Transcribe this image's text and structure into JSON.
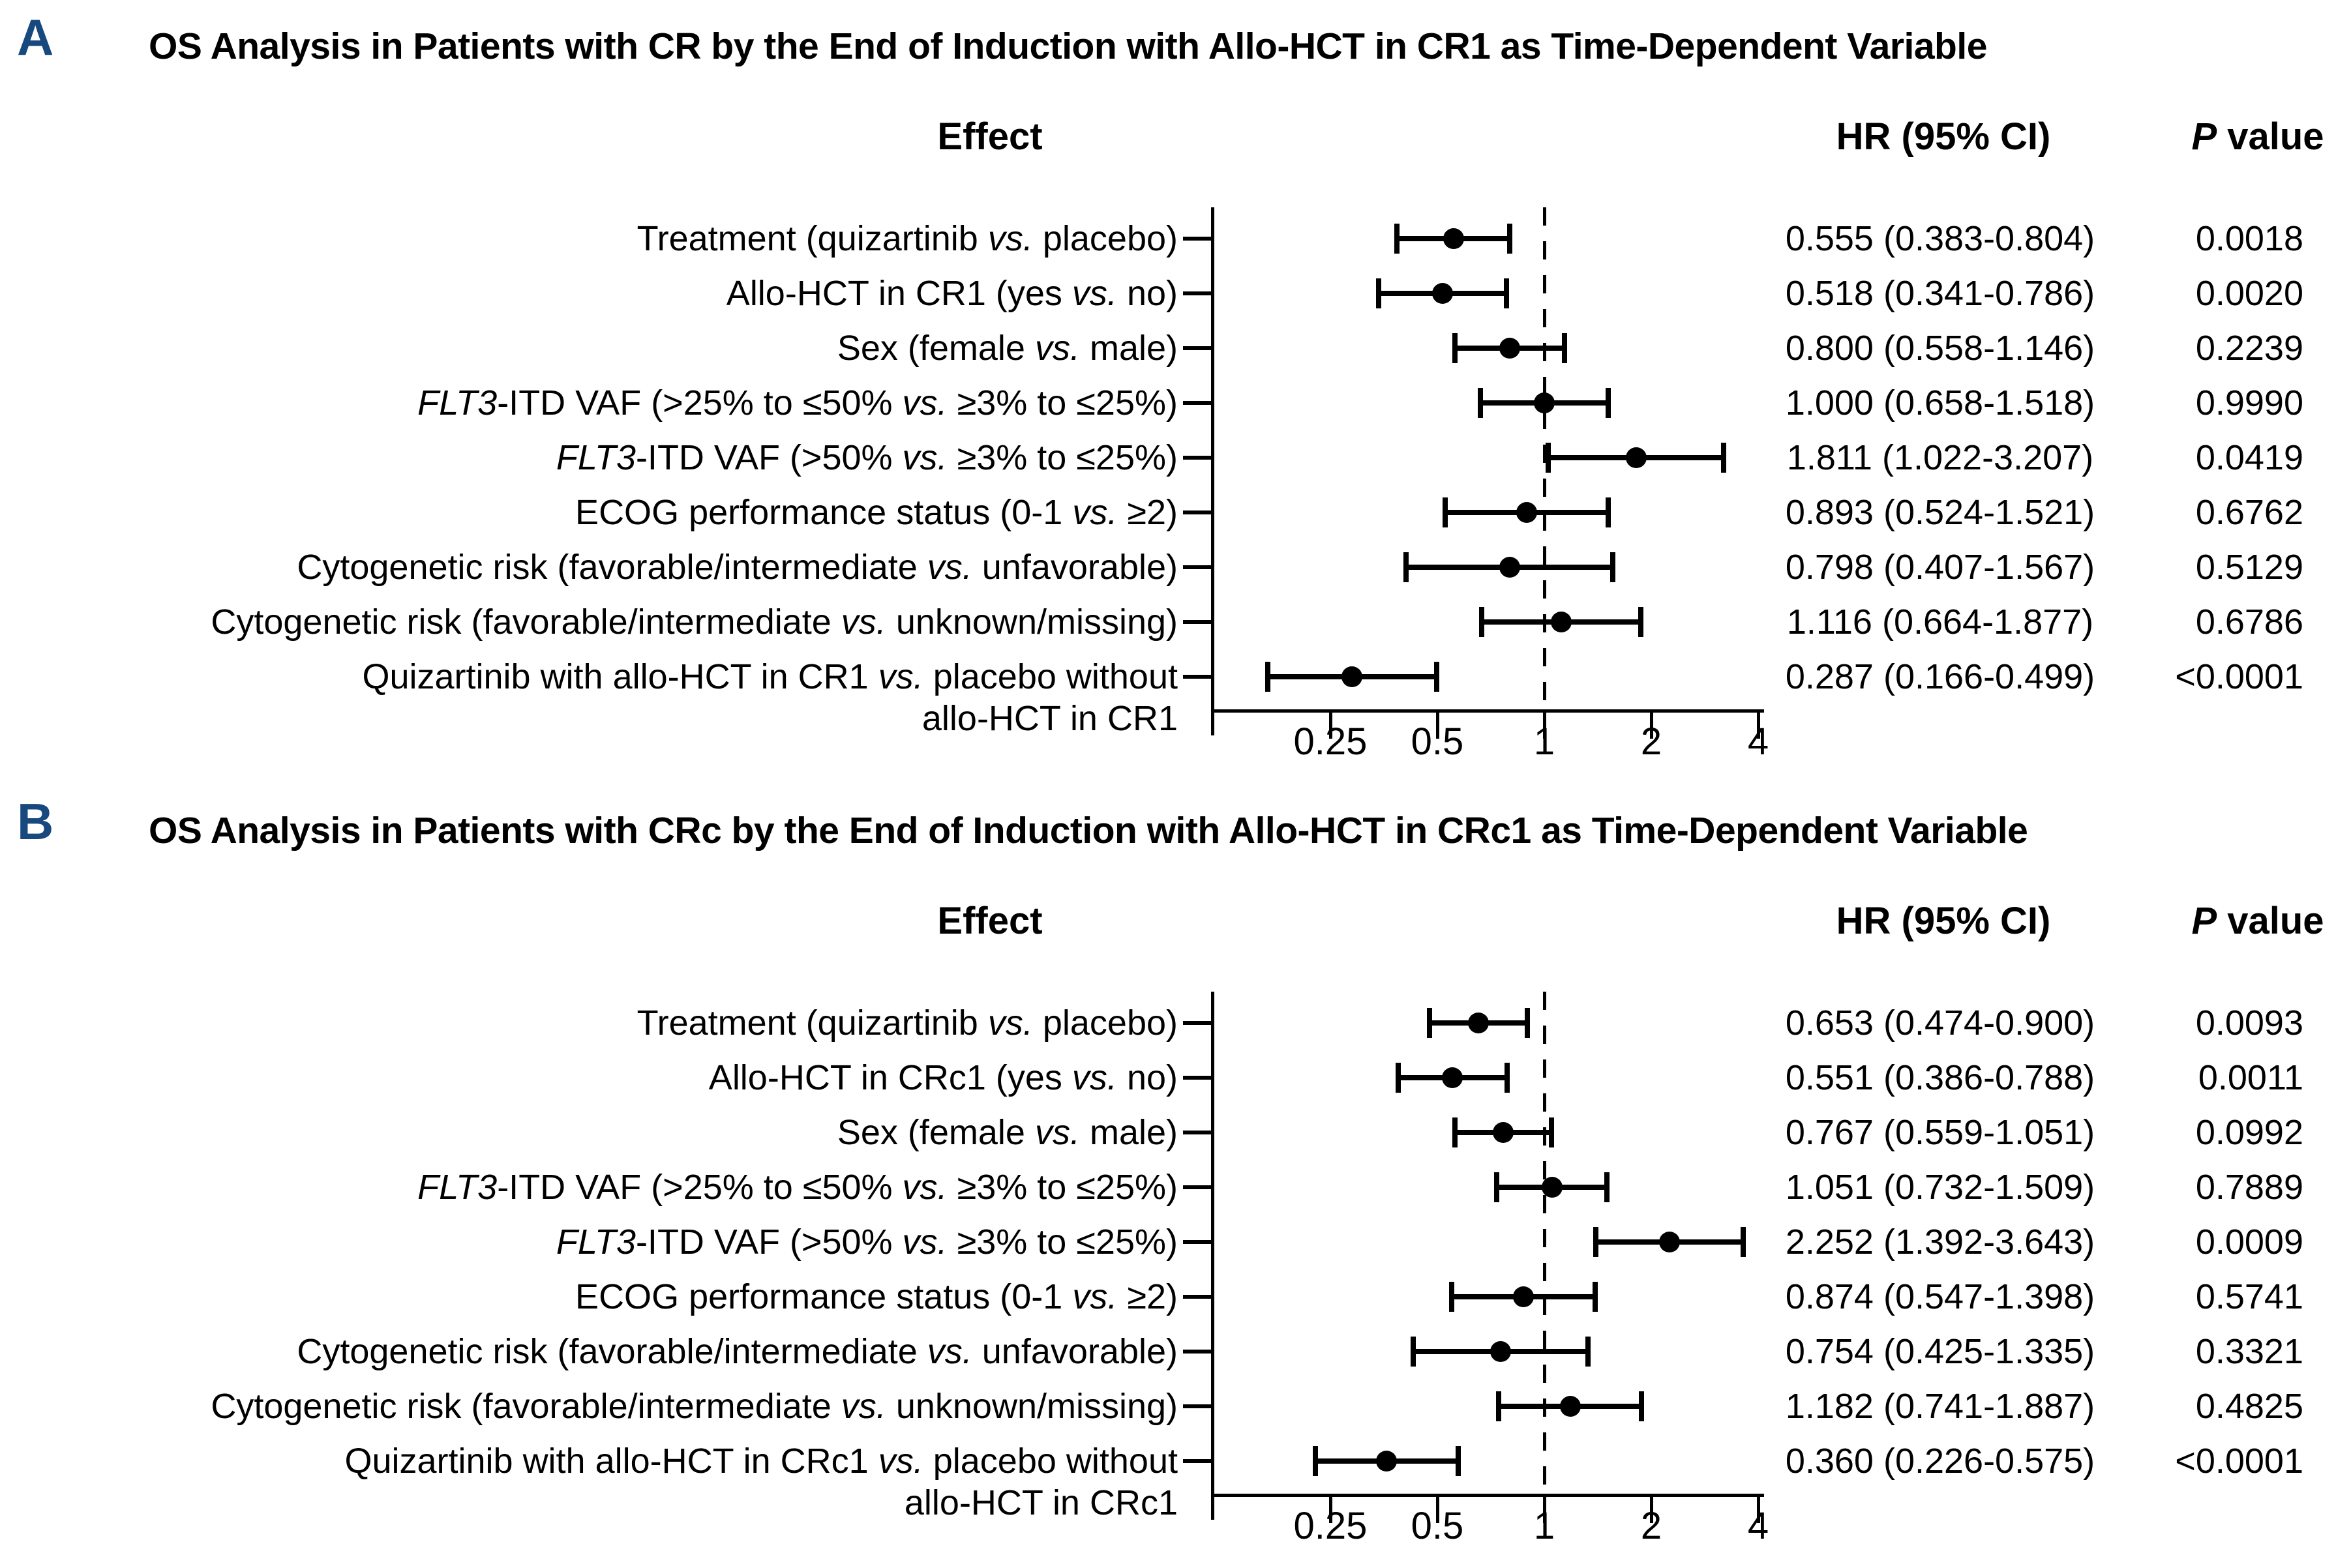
{
  "chart_data": [
    {
      "type": "scatter",
      "subtype": "forest-plot",
      "panel_label": "A",
      "title": "OS Analysis in Patients with CR by the End of Induction with Allo-HCT in CR1 as Time-Dependent Variable",
      "headers": {
        "effect": "Effect",
        "hr": "HR (95% CI)",
        "p": "P value"
      },
      "x_axis": {
        "scale": "log2",
        "ticks": [
          "0.25",
          "0.5",
          "1",
          "2",
          "4"
        ],
        "tick_values": [
          0.25,
          0.5,
          1,
          2,
          4
        ],
        "reference_line": 1
      },
      "rows": [
        {
          "label": "Treatment (quizartinib vs. placebo)",
          "hr": 0.555,
          "lo": 0.383,
          "hi": 0.804,
          "hr_ci": "0.555 (0.383-0.804)",
          "p": "0.0018"
        },
        {
          "label": "Allo-HCT in CR1 (yes vs. no)",
          "hr": 0.518,
          "lo": 0.341,
          "hi": 0.786,
          "hr_ci": "0.518 (0.341-0.786)",
          "p": "0.0020"
        },
        {
          "label": "Sex (female vs. male)",
          "hr": 0.8,
          "lo": 0.558,
          "hi": 1.146,
          "hr_ci": "0.800 (0.558-1.146)",
          "p": "0.2239"
        },
        {
          "label": "FLT3-ITD VAF (>25% to ≤50% vs. ≥3% to ≤25%)",
          "hr": 1.0,
          "lo": 0.658,
          "hi": 1.518,
          "hr_ci": "1.000 (0.658-1.518)",
          "p": "0.9990"
        },
        {
          "label": "FLT3-ITD VAF (>50% vs. ≥3% to ≤25%)",
          "hr": 1.811,
          "lo": 1.022,
          "hi": 3.207,
          "hr_ci": "1.811 (1.022-3.207)",
          "p": "0.0419"
        },
        {
          "label": "ECOG performance status (0-1 vs. ≥2)",
          "hr": 0.893,
          "lo": 0.524,
          "hi": 1.521,
          "hr_ci": "0.893 (0.524-1.521)",
          "p": "0.6762"
        },
        {
          "label": "Cytogenetic risk (favorable/intermediate vs. unfavorable)",
          "hr": 0.798,
          "lo": 0.407,
          "hi": 1.567,
          "hr_ci": "0.798 (0.407-1.567)",
          "p": "0.5129"
        },
        {
          "label": "Cytogenetic risk (favorable/intermediate vs. unknown/missing)",
          "hr": 1.116,
          "lo": 0.664,
          "hi": 1.877,
          "hr_ci": "1.116 (0.664-1.877)",
          "p": "0.6786"
        },
        {
          "label": "Quizartinib with allo-HCT in CR1 vs. placebo without",
          "label2": "allo-HCT in CR1",
          "hr": 0.287,
          "lo": 0.166,
          "hi": 0.499,
          "hr_ci": "0.287 (0.166-0.499)",
          "p": "<0.0001"
        }
      ]
    },
    {
      "type": "scatter",
      "subtype": "forest-plot",
      "panel_label": "B",
      "title": "OS Analysis in Patients with CRc by the End of Induction with Allo-HCT in CRc1 as Time-Dependent Variable",
      "headers": {
        "effect": "Effect",
        "hr": "HR (95% CI)",
        "p": "P value"
      },
      "x_axis": {
        "scale": "log2",
        "ticks": [
          "0.25",
          "0.5",
          "1",
          "2",
          "4"
        ],
        "tick_values": [
          0.25,
          0.5,
          1,
          2,
          4
        ],
        "reference_line": 1
      },
      "rows": [
        {
          "label": "Treatment (quizartinib vs. placebo)",
          "hr": 0.653,
          "lo": 0.474,
          "hi": 0.9,
          "hr_ci": "0.653 (0.474-0.900)",
          "p": "0.0093"
        },
        {
          "label": "Allo-HCT in CRc1 (yes vs. no)",
          "hr": 0.551,
          "lo": 0.386,
          "hi": 0.788,
          "hr_ci": "0.551 (0.386-0.788)",
          "p": "0.0011"
        },
        {
          "label": "Sex (female vs. male)",
          "hr": 0.767,
          "lo": 0.559,
          "hi": 1.051,
          "hr_ci": "0.767 (0.559-1.051)",
          "p": "0.0992"
        },
        {
          "label": "FLT3-ITD VAF (>25% to ≤50% vs. ≥3% to ≤25%)",
          "hr": 1.051,
          "lo": 0.732,
          "hi": 1.509,
          "hr_ci": "1.051 (0.732-1.509)",
          "p": "0.7889"
        },
        {
          "label": "FLT3-ITD VAF (>50% vs. ≥3% to ≤25%)",
          "hr": 2.252,
          "lo": 1.392,
          "hi": 3.643,
          "hr_ci": "2.252 (1.392-3.643)",
          "p": "0.0009"
        },
        {
          "label": "ECOG performance status (0-1 vs. ≥2)",
          "hr": 0.874,
          "lo": 0.547,
          "hi": 1.398,
          "hr_ci": "0.874 (0.547-1.398)",
          "p": "0.5741"
        },
        {
          "label": "Cytogenetic risk (favorable/intermediate vs. unfavorable)",
          "hr": 0.754,
          "lo": 0.425,
          "hi": 1.335,
          "hr_ci": "0.754 (0.425-1.335)",
          "p": "0.3321"
        },
        {
          "label": "Cytogenetic risk (favorable/intermediate vs. unknown/missing)",
          "hr": 1.182,
          "lo": 0.741,
          "hi": 1.887,
          "hr_ci": "1.182 (0.741-1.887)",
          "p": "0.4825"
        },
        {
          "label": "Quizartinib with allo-HCT in CRc1 vs. placebo without",
          "label2": "allo-HCT in CRc1",
          "hr": 0.36,
          "lo": 0.226,
          "hi": 0.575,
          "hr_ci": "0.360 (0.226-0.575)",
          "p": "<0.0001"
        }
      ]
    }
  ],
  "accent_colors": {
    "panel_letter": "#17497e",
    "plot_ink": "#000000"
  }
}
